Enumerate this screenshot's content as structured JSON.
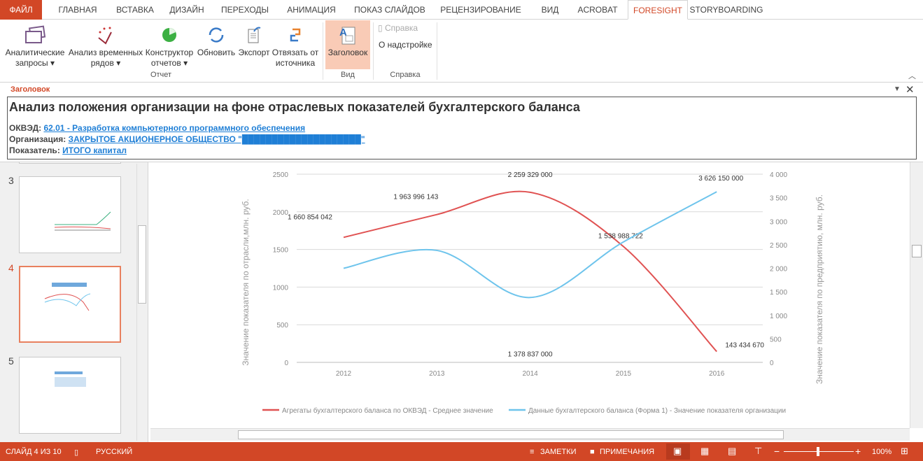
{
  "tabs": [
    {
      "label": "ФАЙЛ"
    },
    {
      "label": "ГЛАВНАЯ"
    },
    {
      "label": "ВСТАВКА"
    },
    {
      "label": "ДИЗАЙН"
    },
    {
      "label": "ПЕРЕХОДЫ"
    },
    {
      "label": "АНИМАЦИЯ"
    },
    {
      "label": "ПОКАЗ СЛАЙДОВ"
    },
    {
      "label": "РЕЦЕНЗИРОВАНИЕ"
    },
    {
      "label": "ВИД"
    },
    {
      "label": "ACROBAT"
    },
    {
      "label": "FORESIGHT",
      "active": true
    },
    {
      "label": "STORYBOARDING"
    }
  ],
  "ribbon": {
    "buttons": [
      {
        "l1": "Аналитические",
        "l2": "запросы ▾"
      },
      {
        "l1": "Анализ временных",
        "l2": "рядов ▾"
      },
      {
        "l1": "Конструктор",
        "l2": "отчетов ▾"
      },
      {
        "l1": "Обновить",
        "l2": ""
      },
      {
        "l1": "Экспорт",
        "l2": ""
      },
      {
        "l1": "Отвязать от",
        "l2": "источника"
      },
      {
        "l1": "Заголовок",
        "l2": ""
      }
    ],
    "help_label": "Справка",
    "about_label": "О надстройке",
    "groups": {
      "report": "Отчет",
      "view": "Вид",
      "help": "Справка"
    }
  },
  "pane": {
    "title": "Заголовок",
    "heading": "Анализ положения организации на фоне отраслевых показателей бухгалтерского баланса",
    "okved_label": "ОКВЭД:",
    "okved_value": "62.01 - Разработка компьютерного программного обеспечения",
    "org_label": "Организация:",
    "org_value": "ЗАКРЫТОЕ АКЦИОНЕРНОЕ ОБЩЕСТВО  \"████████████████████\"",
    "ind_label": "Показатель:",
    "ind_value": "ИТОГО капитал"
  },
  "slides": [
    {
      "num": "3"
    },
    {
      "num": "4",
      "active": true
    },
    {
      "num": "5"
    }
  ],
  "chart_data": {
    "type": "line",
    "categories": [
      "2012",
      "2013",
      "2014",
      "2015",
      "2016"
    ],
    "ylabel": "Значение показателя по отрасли,млн. руб.",
    "y2label": "Значение показателя по предприятию, млн. руб.",
    "ylim": [
      0,
      2500
    ],
    "yticks": [
      "0",
      "500",
      "1000",
      "1500",
      "2000",
      "2500"
    ],
    "y2lim": [
      0,
      4000
    ],
    "y2ticks": [
      "0",
      "500",
      "1 000",
      "1 500",
      "2 000",
      "2 500",
      "3 000",
      "3 500",
      "4 000"
    ],
    "grid": true,
    "legend": "bottom",
    "series": [
      {
        "name": "Агрегаты бухгалтерского баланса по ОКВЭД - Среднее значение",
        "axis": "left",
        "color": "#e05252",
        "values": [
          1660.854042,
          1963.996143,
          2259.329,
          1538.988722,
          143.43467
        ],
        "labels": [
          "1 660 854 042",
          "1 963 996 143",
          "2 259 329 000",
          "1 538 988 722",
          "143 434 670"
        ]
      },
      {
        "name": "Данные бухгалтерского баланса (Форма 1) - Значение показателя организации",
        "axis": "right",
        "color": "#6ec4ec",
        "values": [
          2000,
          2380,
          1378.837,
          2560,
          3626.15
        ],
        "labels": [
          "",
          "",
          "1 378 837 000",
          "",
          "3 626 150 000"
        ]
      }
    ]
  },
  "status": {
    "slide": "СЛАЙД 4 ИЗ 10",
    "lang": "РУССКИЙ",
    "notes": "ЗАМЕТКИ",
    "comments": "ПРИМЕЧАНИЯ",
    "zoom": "100%",
    "zoom_level": 100
  }
}
